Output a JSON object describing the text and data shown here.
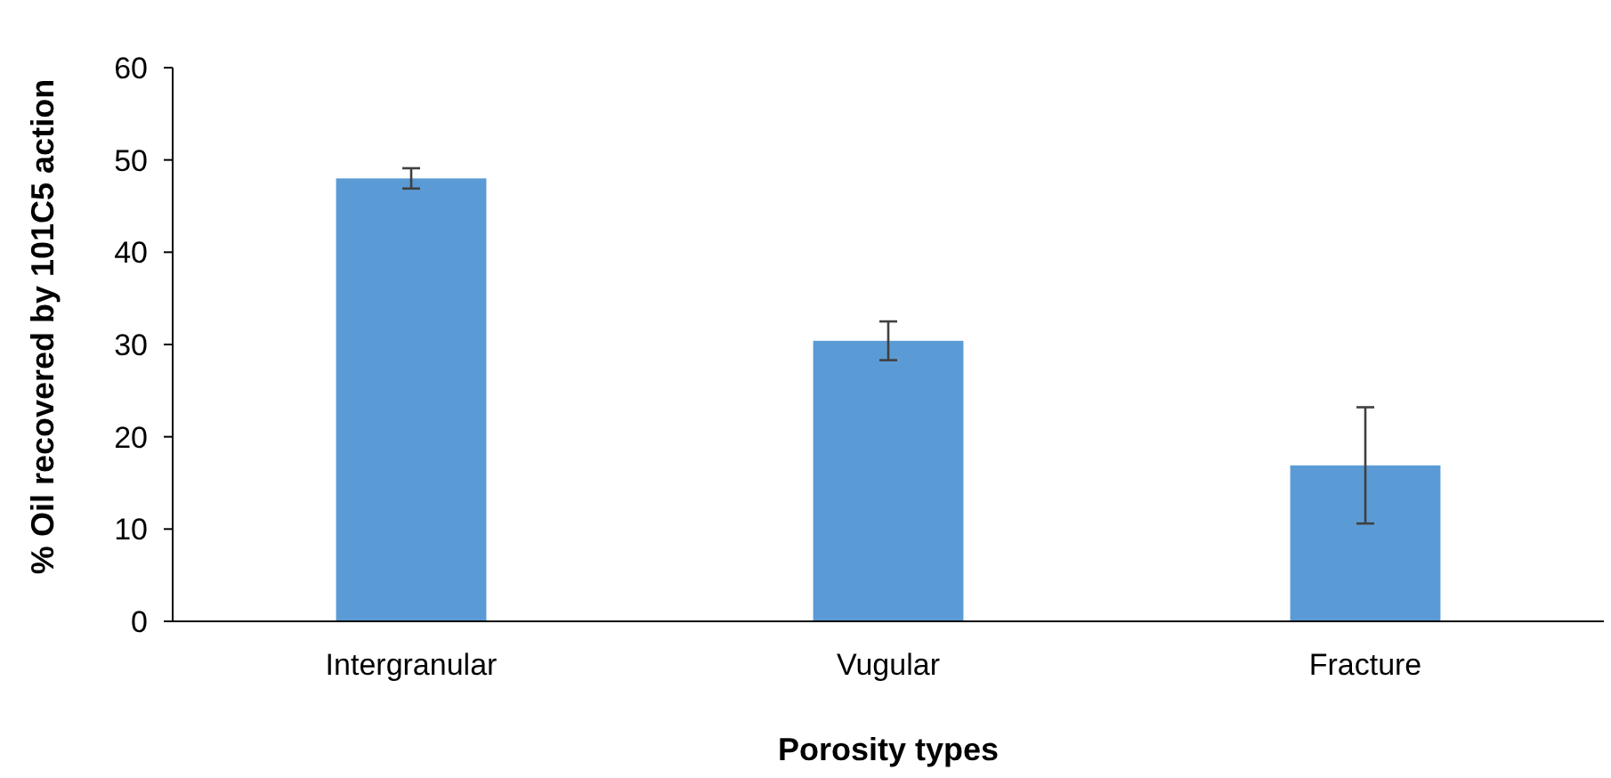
{
  "chart_data": {
    "type": "bar",
    "xlabel": "Porosity types",
    "ylabel": "% Oil recovered by 101C5 action",
    "categories": [
      "Intergranular",
      "Vugular",
      "Fracture"
    ],
    "values": [
      48.0,
      30.4,
      16.9
    ],
    "color": "#5b9bd5",
    "errors": [
      1.1,
      2.1,
      6.3
    ],
    "ylim": [
      0,
      60
    ],
    "yticks": [
      0,
      10,
      20,
      30,
      40,
      50,
      60
    ],
    "grid": false
  }
}
